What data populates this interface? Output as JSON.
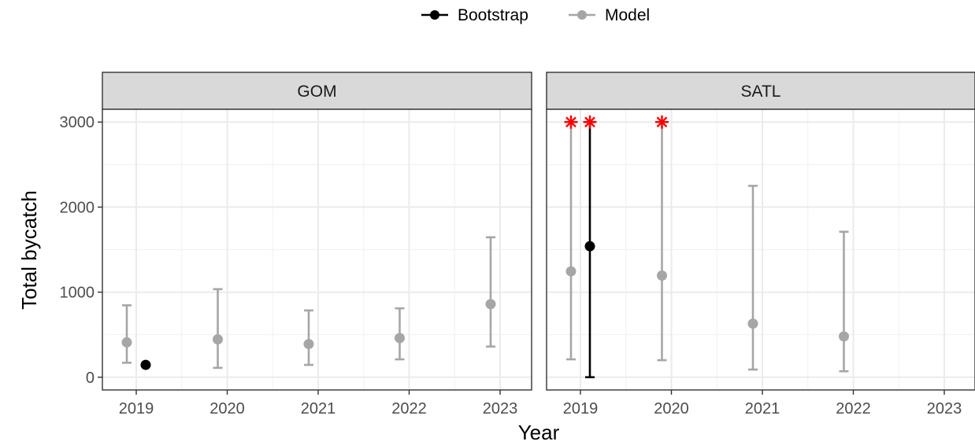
{
  "chart_data": {
    "type": "scatter",
    "subtype": "point-range faceted",
    "xlabel": "Year",
    "ylabel": "Total bycatch",
    "x_ticks": [
      "2019",
      "2020",
      "2021",
      "2022",
      "2023"
    ],
    "y_ticks": [
      0,
      1000,
      2000,
      3000
    ],
    "ylim": [
      -150,
      3150
    ],
    "grid": true,
    "legend": {
      "position": "top",
      "entries": [
        {
          "label": "Bootstrap",
          "color": "#000000"
        },
        {
          "label": "Model",
          "color": "#a6a6a6"
        }
      ]
    },
    "truncation_marker": {
      "symbol": "*",
      "color": "#ff0000",
      "meaning_value": 3000
    },
    "panels": [
      {
        "name": "GOM",
        "series": [
          {
            "name": "Model",
            "points": [
              {
                "year": 2019,
                "estimate": 410,
                "lower": 170,
                "upper": 845
              },
              {
                "year": 2020,
                "estimate": 445,
                "lower": 110,
                "upper": 1035
              },
              {
                "year": 2021,
                "estimate": 390,
                "lower": 145,
                "upper": 785
              },
              {
                "year": 2022,
                "estimate": 460,
                "lower": 210,
                "upper": 810
              },
              {
                "year": 2023,
                "estimate": 860,
                "lower": 360,
                "upper": 1645
              }
            ]
          },
          {
            "name": "Bootstrap",
            "points": [
              {
                "year": 2019,
                "estimate": 145,
                "lower": 145,
                "upper": 145
              }
            ]
          }
        ]
      },
      {
        "name": "SATL",
        "series": [
          {
            "name": "Model",
            "points": [
              {
                "year": 2019,
                "estimate": 1245,
                "lower": 210,
                "upper": 3000,
                "truncated": true
              },
              {
                "year": 2020,
                "estimate": 1195,
                "lower": 200,
                "upper": 3000,
                "truncated": true
              },
              {
                "year": 2021,
                "estimate": 630,
                "lower": 90,
                "upper": 2250
              },
              {
                "year": 2022,
                "estimate": 480,
                "lower": 70,
                "upper": 1710
              }
            ]
          },
          {
            "name": "Bootstrap",
            "points": [
              {
                "year": 2019,
                "estimate": 1540,
                "lower": 0,
                "upper": 3000,
                "truncated": true
              }
            ]
          }
        ]
      }
    ]
  }
}
